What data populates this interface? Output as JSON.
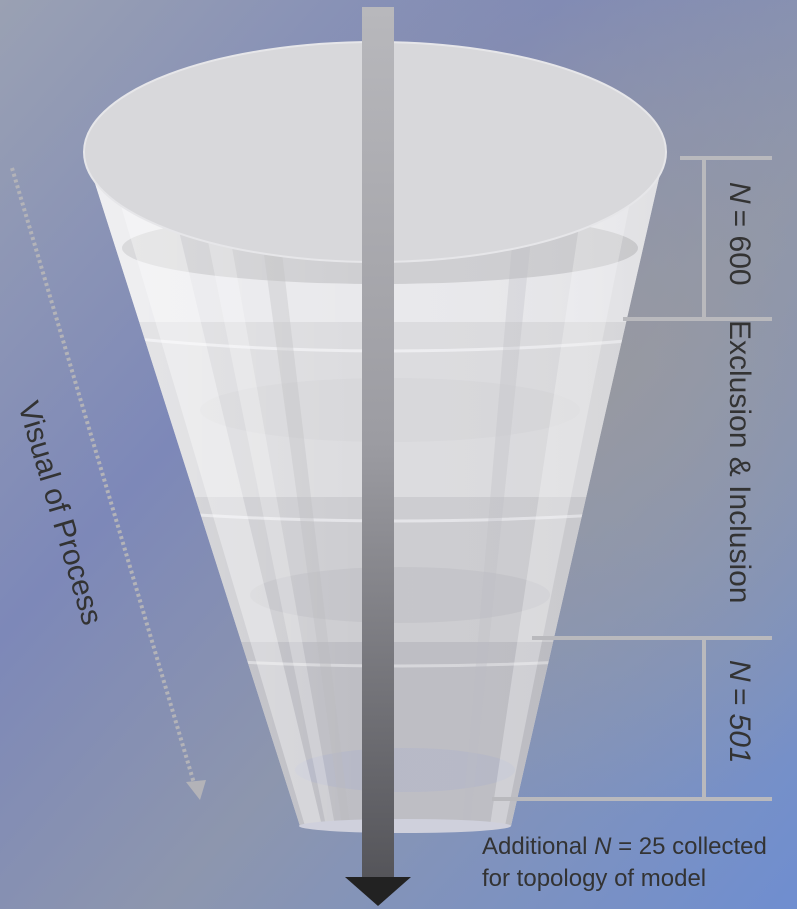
{
  "process_label": "Visual of Process",
  "right_labels": {
    "top_n_symbol": "N",
    "top_n_value": "= 600",
    "middle": "Exclusion & Inclusion",
    "bottom_n_symbol": "N",
    "bottom_n_value": "= 501"
  },
  "note": {
    "line1_prefix": "Additional ",
    "line1_symbol": "N",
    "line1_suffix": " = 25 collected",
    "line2": "for topology of model"
  },
  "colors": {
    "background_top": "#8c98b2",
    "background_bottom": "#7f98cc",
    "funnel_light": "#ececee",
    "funnel_dark": "#a9a9b1",
    "arrow": "#222222",
    "bracket": "#b9b9bd"
  }
}
